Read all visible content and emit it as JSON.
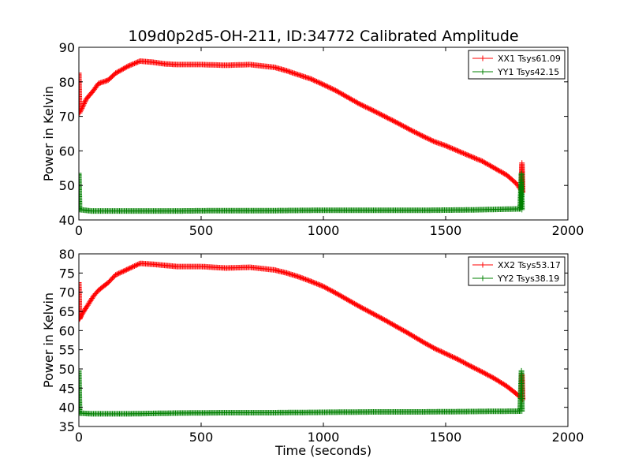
{
  "chart_data": [
    {
      "type": "line",
      "title": "109d0p2d5-OH-211, ID:34772 Calibrated Amplitude",
      "xlabel": "",
      "ylabel": "Power in Kelvin",
      "xlim": [
        0,
        2000
      ],
      "ylim": [
        40,
        90
      ],
      "xticks": [
        "0",
        "500",
        "1000",
        "1500",
        "2000"
      ],
      "yticks": [
        "40",
        "50",
        "60",
        "70",
        "80",
        "90"
      ],
      "grid": false,
      "legend_position": "top-right",
      "marker": "+",
      "series": [
        {
          "name": "XX1 Tsys61.09",
          "color": "#ff0000",
          "points": [
            [
              0,
              82.5
            ],
            [
              3,
              71
            ],
            [
              10,
              72
            ],
            [
              30,
              75
            ],
            [
              60,
              77.5
            ],
            [
              80,
              79.5
            ],
            [
              120,
              80.5
            ],
            [
              150,
              82.5
            ],
            [
              200,
              84.5
            ],
            [
              250,
              86
            ],
            [
              300,
              85.7
            ],
            [
              350,
              85.2
            ],
            [
              400,
              85
            ],
            [
              500,
              85
            ],
            [
              600,
              84.8
            ],
            [
              700,
              85
            ],
            [
              800,
              84.2
            ],
            [
              850,
              83.2
            ],
            [
              900,
              82
            ],
            [
              950,
              80.8
            ],
            [
              1000,
              79.2
            ],
            [
              1050,
              77.5
            ],
            [
              1100,
              75.5
            ],
            [
              1150,
              73.5
            ],
            [
              1200,
              71.8
            ],
            [
              1250,
              70
            ],
            [
              1300,
              68.2
            ],
            [
              1350,
              66.3
            ],
            [
              1400,
              64.5
            ],
            [
              1450,
              62.8
            ],
            [
              1500,
              61.5
            ],
            [
              1550,
              60
            ],
            [
              1600,
              58.5
            ],
            [
              1650,
              57
            ],
            [
              1700,
              55
            ],
            [
              1750,
              53
            ],
            [
              1790,
              50.5
            ],
            [
              1810,
              48.5
            ],
            [
              1812,
              56.5
            ],
            [
              1815,
              48
            ]
          ]
        },
        {
          "name": "YY1 Tsys42.15",
          "color": "#008000",
          "points": [
            [
              0,
              53.5
            ],
            [
              3,
              43
            ],
            [
              50,
              42.6
            ],
            [
              200,
              42.6
            ],
            [
              400,
              42.6
            ],
            [
              600,
              42.7
            ],
            [
              800,
              42.7
            ],
            [
              1000,
              42.8
            ],
            [
              1200,
              42.8
            ],
            [
              1400,
              42.8
            ],
            [
              1600,
              42.9
            ],
            [
              1800,
              43.2
            ],
            [
              1805,
              43.2
            ],
            [
              1810,
              53.5
            ],
            [
              1812,
              43
            ]
          ]
        }
      ]
    },
    {
      "type": "line",
      "title": "",
      "xlabel": "Time (seconds)",
      "ylabel": "Power in Kelvin",
      "xlim": [
        0,
        2000
      ],
      "ylim": [
        35,
        80
      ],
      "xticks": [
        "0",
        "500",
        "1000",
        "1500",
        "2000"
      ],
      "yticks": [
        "35",
        "40",
        "45",
        "50",
        "55",
        "60",
        "65",
        "70",
        "75",
        "80"
      ],
      "grid": false,
      "legend_position": "top-right",
      "marker": "+",
      "series": [
        {
          "name": "XX2 Tsys53.17",
          "color": "#ff0000",
          "points": [
            [
              0,
              72.5
            ],
            [
              3,
              63
            ],
            [
              10,
              64
            ],
            [
              30,
              66
            ],
            [
              60,
              69
            ],
            [
              80,
              70.5
            ],
            [
              120,
              72.5
            ],
            [
              150,
              74.5
            ],
            [
              200,
              76
            ],
            [
              250,
              77.5
            ],
            [
              300,
              77.3
            ],
            [
              350,
              77
            ],
            [
              400,
              76.7
            ],
            [
              500,
              76.7
            ],
            [
              600,
              76.3
            ],
            [
              700,
              76.5
            ],
            [
              800,
              75.8
            ],
            [
              850,
              75
            ],
            [
              900,
              74
            ],
            [
              950,
              72.8
            ],
            [
              1000,
              71.5
            ],
            [
              1050,
              69.8
            ],
            [
              1100,
              68
            ],
            [
              1150,
              66.2
            ],
            [
              1200,
              64.5
            ],
            [
              1250,
              62.8
            ],
            [
              1300,
              61
            ],
            [
              1350,
              59.2
            ],
            [
              1400,
              57.3
            ],
            [
              1450,
              55.5
            ],
            [
              1500,
              54
            ],
            [
              1550,
              52.5
            ],
            [
              1600,
              50.8
            ],
            [
              1650,
              49.2
            ],
            [
              1700,
              47.5
            ],
            [
              1750,
              45.5
            ],
            [
              1790,
              43.5
            ],
            [
              1810,
              42.3
            ],
            [
              1812,
              48.5
            ],
            [
              1815,
              42
            ]
          ]
        },
        {
          "name": "YY2 Tsys38.19",
          "color": "#008000",
          "points": [
            [
              0,
              49.5
            ],
            [
              3,
              38.5
            ],
            [
              50,
              38.3
            ],
            [
              200,
              38.3
            ],
            [
              400,
              38.5
            ],
            [
              600,
              38.6
            ],
            [
              800,
              38.6
            ],
            [
              1000,
              38.7
            ],
            [
              1200,
              38.8
            ],
            [
              1400,
              38.8
            ],
            [
              1600,
              38.9
            ],
            [
              1800,
              39
            ],
            [
              1805,
              39
            ],
            [
              1810,
              49.5
            ],
            [
              1812,
              39
            ]
          ]
        }
      ]
    }
  ]
}
